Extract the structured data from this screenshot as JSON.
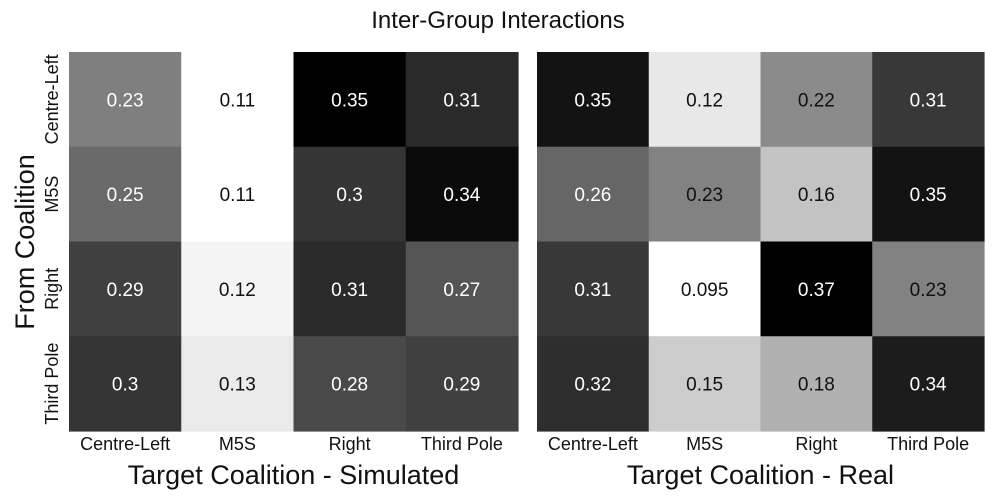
{
  "chart_data": {
    "type": "heatmap",
    "title": "Inter-Group Interactions",
    "ylabel": "From Coalition",
    "rows": [
      "Centre-Left",
      "M5S",
      "Right",
      "Third Pole"
    ],
    "columns": [
      "Centre-Left",
      "M5S",
      "Right",
      "Third Pole"
    ],
    "colormap": "grayscale (low = white, high = black)",
    "panels": [
      {
        "name": "simulated",
        "xlabel": "Target Coalition - Simulated",
        "vmin": 0.11,
        "vmax": 0.35,
        "values": [
          [
            0.23,
            0.11,
            0.35,
            0.31
          ],
          [
            0.25,
            0.11,
            0.3,
            0.34
          ],
          [
            0.29,
            0.12,
            0.31,
            0.27
          ],
          [
            0.3,
            0.13,
            0.28,
            0.29
          ]
        ],
        "labels": [
          [
            "0.23",
            "0.11",
            "0.35",
            "0.31"
          ],
          [
            "0.25",
            "0.11",
            "0.3",
            "0.34"
          ],
          [
            "0.29",
            "0.12",
            "0.31",
            "0.27"
          ],
          [
            "0.3",
            "0.13",
            "0.28",
            "0.29"
          ]
        ]
      },
      {
        "name": "real",
        "xlabel": "Target Coalition - Real",
        "vmin": 0.095,
        "vmax": 0.37,
        "values": [
          [
            0.35,
            0.12,
            0.22,
            0.31
          ],
          [
            0.26,
            0.23,
            0.16,
            0.35
          ],
          [
            0.31,
            0.095,
            0.37,
            0.23
          ],
          [
            0.32,
            0.15,
            0.18,
            0.34
          ]
        ],
        "labels": [
          [
            "0.35",
            "0.12",
            "0.22",
            "0.31"
          ],
          [
            "0.26",
            "0.23",
            "0.16",
            "0.35"
          ],
          [
            "0.31",
            "0.095",
            "0.37",
            "0.23"
          ],
          [
            "0.32",
            "0.15",
            "0.18",
            "0.34"
          ]
        ]
      }
    ]
  }
}
